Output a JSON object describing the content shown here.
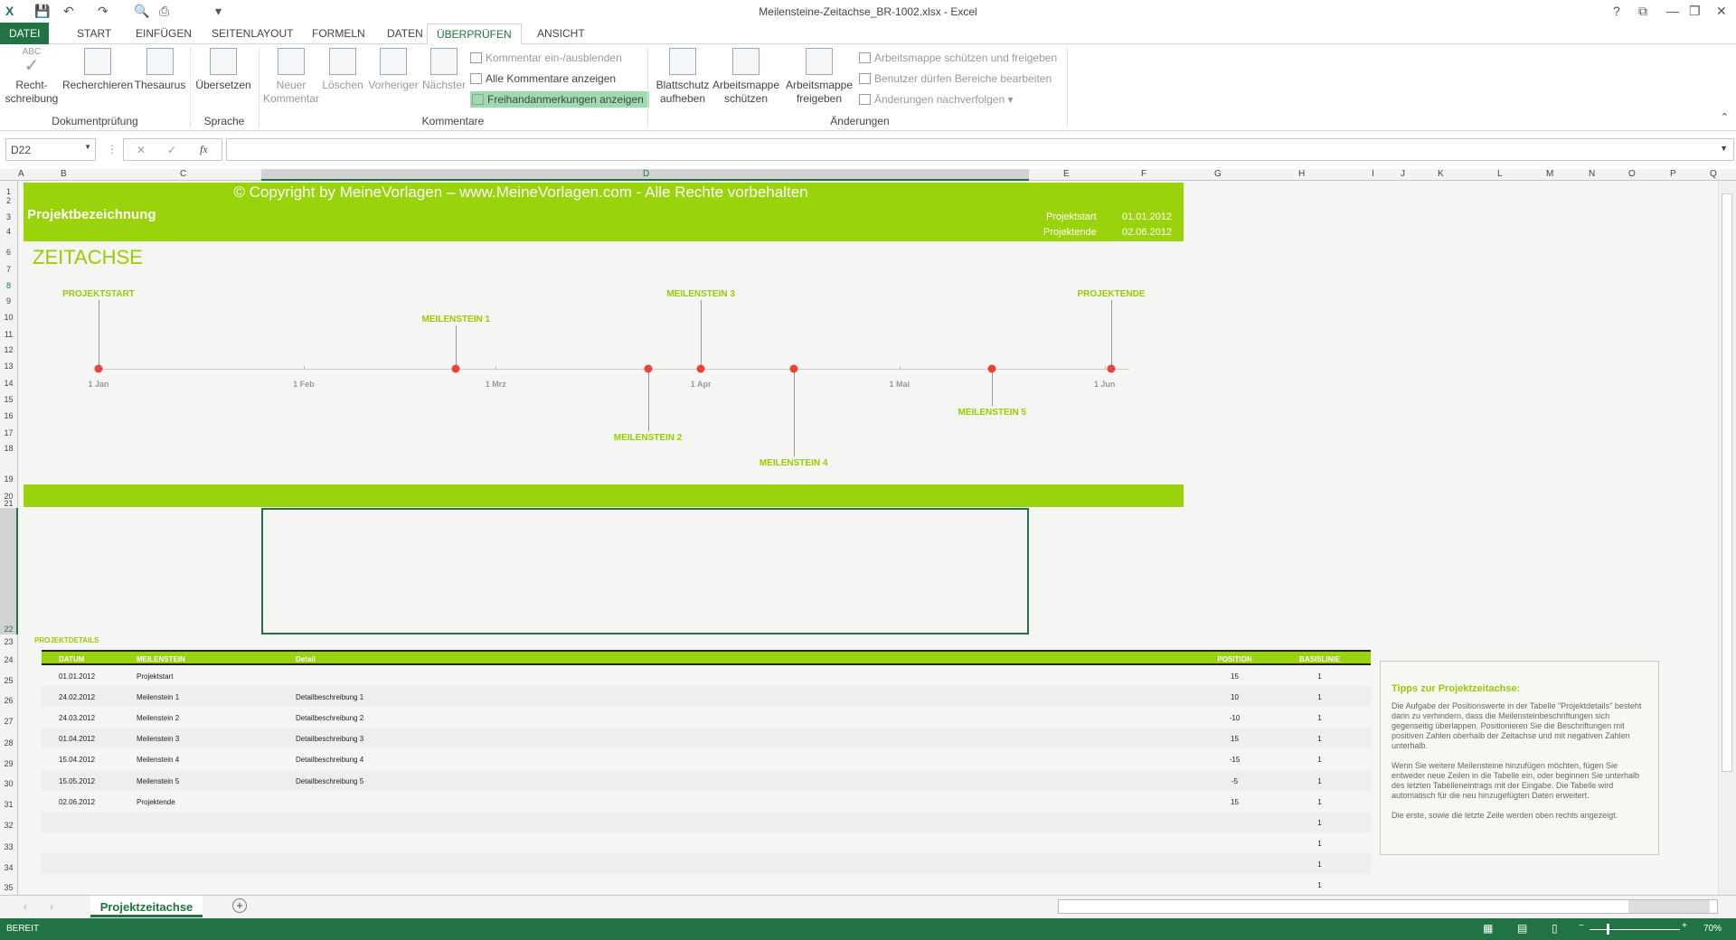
{
  "window": {
    "title": "Meilensteine-Zeitachse_BR-1002.xlsx - Excel",
    "help": "?",
    "controls": [
      "⧉",
      "—",
      "❐",
      "✕"
    ]
  },
  "quick_access": [
    "save-icon",
    "undo-icon",
    "redo-icon",
    "print-preview-icon",
    "print-icon",
    "customize-icon"
  ],
  "tabs": [
    {
      "label": "DATEI"
    },
    {
      "label": "START"
    },
    {
      "label": "EINFÜGEN"
    },
    {
      "label": "SEITENLAYOUT"
    },
    {
      "label": "FORMELN"
    },
    {
      "label": "DATEN"
    },
    {
      "label": "ÜBERPRÜFEN",
      "active": true
    },
    {
      "label": "ANSICHT"
    }
  ],
  "ribbon": {
    "groups": [
      "Dokumentprüfung",
      "Sprache",
      "Kommentare",
      "Änderungen"
    ],
    "buttons": [
      {
        "l1": "Recht-",
        "l2": "schreibung",
        "label_top": "ABC"
      },
      {
        "l1": "Recherchieren",
        "l2": ""
      },
      {
        "l1": "Thesaurus",
        "l2": ""
      },
      {
        "l1": "Übersetzen",
        "l2": ""
      },
      {
        "l1": "Neuer",
        "l2": "Kommentar",
        "disabled": true
      },
      {
        "l1": "Löschen",
        "l2": "",
        "disabled": true
      },
      {
        "l1": "Vorheriger",
        "l2": "",
        "disabled": true
      },
      {
        "l1": "Nächster",
        "l2": "",
        "disabled": true
      },
      {
        "l1": "Blattschutz",
        "l2": "aufheben"
      },
      {
        "l1": "Arbeitsmappe",
        "l2": "schützen"
      },
      {
        "l1": "Arbeitsmappe",
        "l2": "freigeben"
      }
    ],
    "small": [
      {
        "label": "Kommentar ein-/ausblenden",
        "disabled": true
      },
      {
        "label": "Alle Kommentare anzeigen"
      },
      {
        "label": "Freihandanmerkungen anzeigen",
        "active": true
      },
      {
        "label": "Arbeitsmappe schützen und freigeben",
        "disabled": true
      },
      {
        "label": "Benutzer dürfen Bereiche bearbeiten",
        "disabled": true
      },
      {
        "label": "Änderungen nachverfolgen ▾",
        "disabled": true
      }
    ]
  },
  "formula_bar": {
    "name_box": "D22",
    "cancel": "✕",
    "enter": "✓",
    "fx": "fx",
    "value": ""
  },
  "columns": [
    "A",
    "B",
    "C",
    "D",
    "E",
    "F",
    "G",
    "H",
    "I",
    "J",
    "K",
    "L",
    "M",
    "N",
    "O",
    "P",
    "Q"
  ],
  "rows": [
    "1",
    "2",
    "3",
    "4",
    "6",
    "7",
    "8",
    "9",
    "10",
    "11",
    "12",
    "13",
    "14",
    "15",
    "16",
    "17",
    "18",
    "19",
    "20",
    "21",
    "22",
    "23",
    "24",
    "25",
    "26",
    "27",
    "28",
    "29",
    "30",
    "31",
    "32",
    "33",
    "34",
    "35"
  ],
  "banner": {
    "copyright": "© Copyright by MeineVorlagen – www.MeineVorlagen.com - Alle Rechte vorbehalten",
    "title": "Projektbezeichnung",
    "start_label": "Projektstart",
    "start": "01.01.2012",
    "end_label": "Projektende",
    "end": "02.06.2012"
  },
  "section_title": "ZEITACHSE",
  "chart_data": {
    "type": "scatter",
    "x_ticks": [
      "1 Jan",
      "1 Feb",
      "1 Mrz",
      "1 Apr",
      "1 Mai",
      "1 Jun"
    ],
    "x_range": [
      "2012-01-01",
      "2012-06-02"
    ],
    "points": [
      {
        "date": "2012-01-01",
        "label": "PROJEKTSTART",
        "position": 15
      },
      {
        "date": "2012-02-24",
        "label": "MEILENSTEIN 1",
        "position": 10
      },
      {
        "date": "2012-03-24",
        "label": "MEILENSTEIN 2",
        "position": -10
      },
      {
        "date": "2012-04-01",
        "label": "MEILENSTEIN 3",
        "position": 15
      },
      {
        "date": "2012-04-15",
        "label": "MEILENSTEIN 4",
        "position": -15
      },
      {
        "date": "2012-05-15",
        "label": "MEILENSTEIN 5",
        "position": -5
      },
      {
        "date": "2012-06-02",
        "label": "PROJEKTENDE",
        "position": 15
      }
    ],
    "colors": {
      "marker": "#e8423b",
      "label": "#99cc00"
    }
  },
  "table": {
    "title": "PROJEKTDETAILS",
    "headers": [
      "DATUM",
      "MEILENSTEIN",
      "Detail",
      "POSITION",
      "BASISLINIE"
    ],
    "rows": [
      [
        "01.01.2012",
        "Projektstart",
        "",
        "15",
        "1"
      ],
      [
        "24.02.2012",
        "Meilenstein 1",
        "Detailbeschreibung 1",
        "10",
        "1"
      ],
      [
        "24.03.2012",
        "Meilenstein 2",
        "Detailbeschreibung 2",
        "-10",
        "1"
      ],
      [
        "01.04.2012",
        "Meilenstein 3",
        "Detailbeschreibung 3",
        "15",
        "1"
      ],
      [
        "15.04.2012",
        "Meilenstein 4",
        "Detailbeschreibung 4",
        "-15",
        "1"
      ],
      [
        "15.05.2012",
        "Meilenstein 5",
        "Detailbeschreibung 5",
        "-5",
        "1"
      ],
      [
        "02.06.2012",
        "Projektende",
        "",
        "15",
        "1"
      ],
      [
        "",
        "",
        "",
        "",
        "1"
      ],
      [
        "",
        "",
        "",
        "",
        "1"
      ],
      [
        "",
        "",
        "",
        "",
        "1"
      ],
      [
        "",
        "",
        "",
        "",
        "1"
      ]
    ]
  },
  "tips": {
    "title": "Tipps zur Projektzeitachse:",
    "p1": "Die Aufgabe der Positionswerte in der Tabelle \"Projektdetails\" besteht darin zu verhindern, dass die Meilensteinbeschriftungen sich gegenseitig überlappen. Positionieren Sie die Beschriftungen mit positiven Zahlen oberhalb der Zeitachse und mit negativen Zahlen unterhalb.",
    "p2": "Wenn Sie weitere Meilensteine hinzufügen möchten, fügen Sie entweder neue Zeilen in die Tabelle ein, oder beginnen Sie unterhalb des letzten Tabelleneintrags mit der Eingabe. Die Tabelle wird automatisch für die neu hinzugefügten Daten erweitert.",
    "p3": "Die erste, sowie die letzte Zeile werden oben rechts angezeigt."
  },
  "sheet_tabs": {
    "active": "Projektzeitachse",
    "add": "+"
  },
  "status": {
    "text": "BEREIT",
    "zoom": "70%",
    "zoom_level": 70
  },
  "colors": {
    "accent": "#99d30b",
    "excel_green": "#217346"
  }
}
